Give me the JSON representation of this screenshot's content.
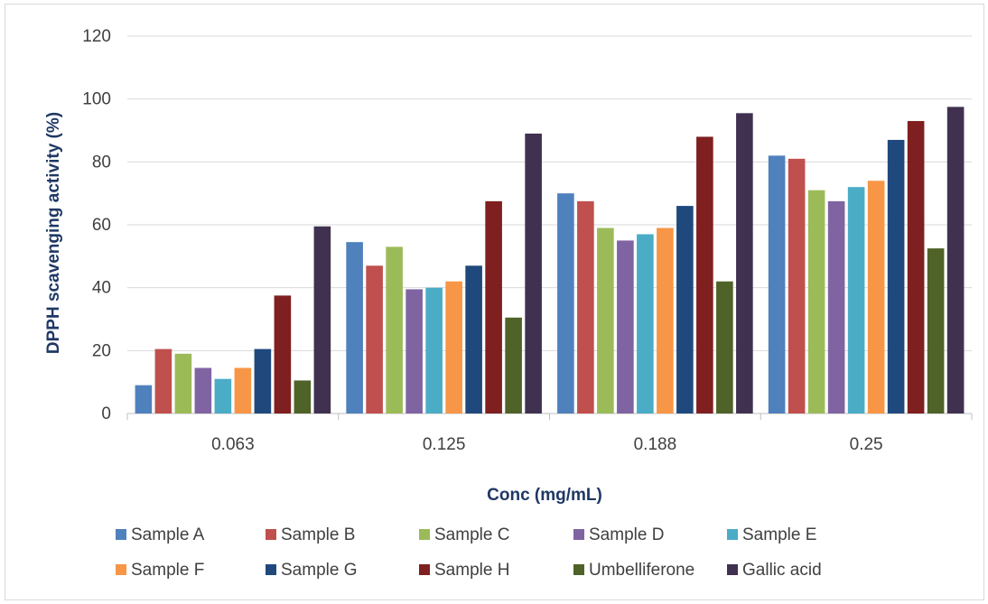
{
  "chart_data": {
    "type": "bar",
    "title": "",
    "xlabel": "Conc (mg/mL)",
    "ylabel": "DPPH scavenging activity (%)",
    "ylim": [
      0,
      120
    ],
    "yticks": [
      0,
      20,
      40,
      60,
      80,
      100,
      120
    ],
    "categories": [
      "0.063",
      "0.125",
      "0.188",
      "0.25"
    ],
    "grid": true,
    "legend_position": "bottom",
    "series": [
      {
        "name": "Sample A",
        "color": "#4f81bd",
        "values": [
          9,
          54.5,
          70,
          82
        ]
      },
      {
        "name": "Sample  B",
        "color": "#c0504d",
        "values": [
          20.5,
          47,
          67.5,
          81
        ]
      },
      {
        "name": "Sample  C",
        "color": "#9bbb59",
        "values": [
          19,
          53,
          59,
          71
        ]
      },
      {
        "name": "Sample  D",
        "color": "#8064a2",
        "values": [
          14.5,
          39.5,
          55,
          67.5
        ]
      },
      {
        "name": "Sample  E",
        "color": "#4bacc6",
        "values": [
          11,
          40,
          57,
          72
        ]
      },
      {
        "name": "Sample  F",
        "color": "#f79646",
        "values": [
          14.5,
          42,
          59,
          74
        ]
      },
      {
        "name": "Sample  G",
        "color": "#1f497d",
        "values": [
          20.5,
          47,
          66,
          87
        ]
      },
      {
        "name": "Sample  H",
        "color": "#7f1f1f",
        "values": [
          37.5,
          67.5,
          88,
          93
        ]
      },
      {
        "name": "Umbelliferone",
        "color": "#4f6228",
        "values": [
          10.5,
          30.5,
          42,
          52.5
        ]
      },
      {
        "name": "Gallic acid",
        "color": "#403151",
        "values": [
          59.5,
          89,
          95.5,
          97.5
        ]
      }
    ]
  }
}
